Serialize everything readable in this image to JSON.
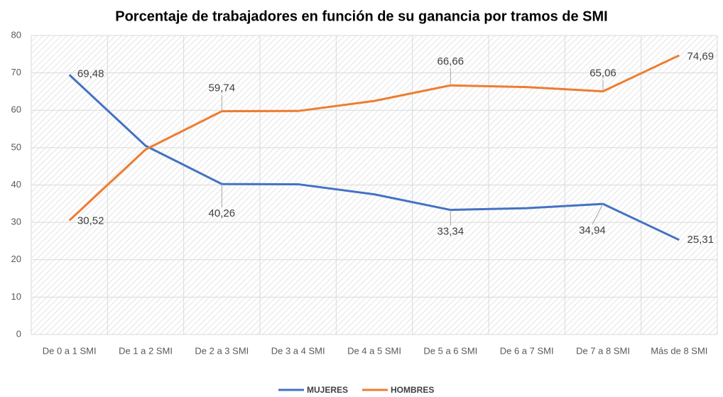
{
  "chart_data": {
    "type": "line",
    "title": "Porcentaje de trabajadores en función de su ganancia por tramos de SMI",
    "categories": [
      "De 0 a 1 SMI",
      "De 1 a 2 SMI",
      "De 2 a 3 SMI",
      "De 3 a 4 SMI",
      "De 4 a 5 SMI",
      "De 5 a 6 SMI",
      "De 6 a 7 SMI",
      "De 7 a 8 SMI",
      "Más de 8 SMI"
    ],
    "series": [
      {
        "name": "MUJERES",
        "color": "#4472c4",
        "values": [
          69.48,
          50.5,
          40.26,
          40.2,
          37.5,
          33.34,
          33.8,
          34.94,
          25.31
        ],
        "value_labels": [
          "69,48",
          null,
          "40,26",
          null,
          null,
          "33,34",
          null,
          "34,94",
          "25,31"
        ]
      },
      {
        "name": "HOMBRES",
        "color": "#ed7d31",
        "values": [
          30.52,
          49.5,
          59.74,
          59.8,
          62.5,
          66.66,
          66.2,
          65.06,
          74.69
        ],
        "value_labels": [
          "30,52",
          null,
          "59,74",
          null,
          null,
          "66,66",
          null,
          "65,06",
          "74,69"
        ]
      }
    ],
    "ylim": [
      0,
      80
    ],
    "yticks": [
      0,
      10,
      20,
      30,
      40,
      50,
      60,
      70,
      80
    ],
    "grid": true,
    "legend": "bottom"
  }
}
